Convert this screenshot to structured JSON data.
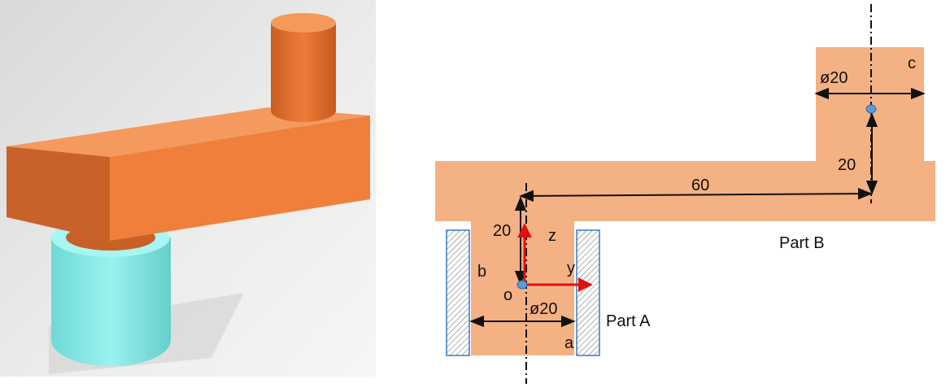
{
  "colors": {
    "part_fill": "#F4B183",
    "orange_light": "#F08A45",
    "orange_dark": "#C8622A",
    "cyan": "#8AE9E6",
    "cyan_dark": "#5ACFCB",
    "support_stroke": "#3A78C9",
    "axis_red": "#E01010",
    "point_blue": "#5B9BD5"
  },
  "labels": {
    "dim_top_diameter": "ø20",
    "corner_c": "c",
    "dim_vertical_b": "20",
    "dim_horizontal": "60",
    "dim_vertical_a": "20",
    "axis_z": "z",
    "axis_y": "y",
    "label_b": "b",
    "label_o": "o",
    "dim_bottom_diameter": "ø20",
    "label_a": "a",
    "part_a": "Part A",
    "part_b": "Part B"
  },
  "icons": {
    "render": "3d-crank-render",
    "origin": "origin-point",
    "joint": "joint-point"
  }
}
